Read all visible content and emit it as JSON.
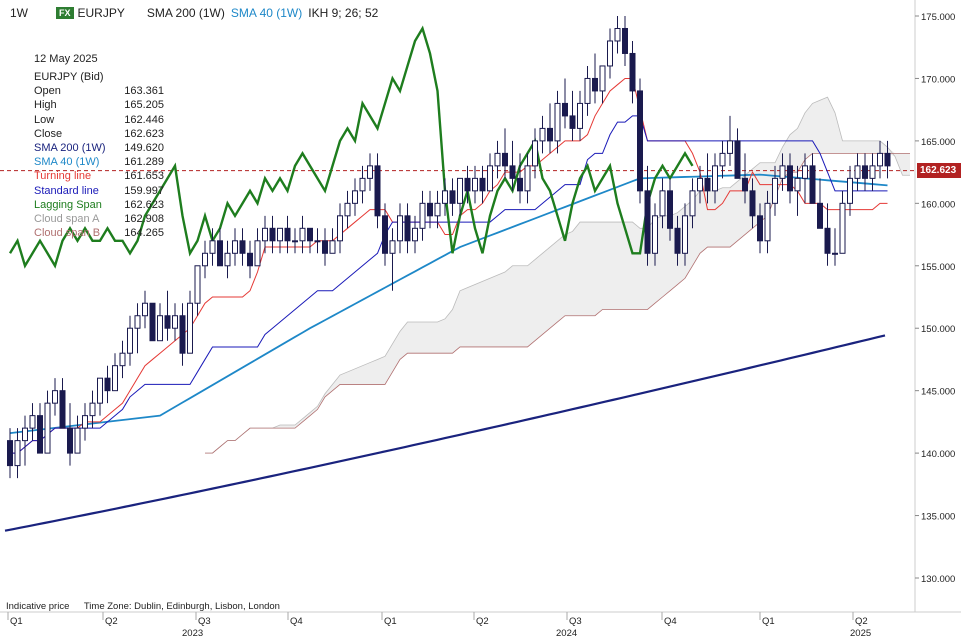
{
  "header": {
    "timeframe": "1W",
    "fx_badge": "FX",
    "symbol": "EURJPY",
    "indicators": [
      "SMA 200 (1W)",
      "SMA 40 (1W)",
      "IKH 9; 26; 52"
    ]
  },
  "legend": {
    "date": "12 May 2025",
    "instrument": "EURJPY (Bid)",
    "rows": [
      {
        "label": "Open",
        "value": "163.361",
        "color": "#222222"
      },
      {
        "label": "High",
        "value": "165.205",
        "color": "#222222"
      },
      {
        "label": "Low",
        "value": "162.446",
        "color": "#222222"
      },
      {
        "label": "Close",
        "value": "162.623",
        "color": "#222222"
      },
      {
        "label": "SMA 200 (1W)",
        "value": "149.620",
        "color": "#1a237e"
      },
      {
        "label": "SMA 40 (1W)",
        "value": "161.289",
        "color": "#1e88c8"
      },
      {
        "label": "Turning line",
        "value": "161.653",
        "color": "#e53935"
      },
      {
        "label": "Standard line",
        "value": "159.997",
        "color": "#1a1ab8"
      },
      {
        "label": "Lagging Span",
        "value": "162.623",
        "color": "#1e7d1e"
      },
      {
        "label": "Cloud span A",
        "value": "162.908",
        "color": "#999999"
      },
      {
        "label": "Cloud span B",
        "value": "164.265",
        "color": "#b07070"
      }
    ]
  },
  "footer": {
    "note": "Indicative price",
    "timezone": "Time Zone: Dublin, Edinburgh, Lisbon, London"
  },
  "price_label": "162.623",
  "chart_data": {
    "type": "candlestick",
    "y_axis": {
      "ticks": [
        "130.000",
        "135.000",
        "140.000",
        "145.000",
        "150.000",
        "155.000",
        "160.000",
        "165.000",
        "170.000",
        "175.000"
      ],
      "side": "right"
    },
    "x_axis": {
      "quarters": [
        "Q1",
        "Q2",
        "Q3",
        "Q4",
        "Q1",
        "Q2",
        "Q3",
        "Q4",
        "Q1",
        "Q2"
      ],
      "years": [
        "2023",
        "2024",
        "2025"
      ]
    },
    "current_price": 162.623,
    "ohlc": [
      [
        141,
        142,
        138,
        139
      ],
      [
        139,
        142,
        138,
        141
      ],
      [
        141,
        143,
        139,
        142
      ],
      [
        142,
        144,
        141,
        143
      ],
      [
        143,
        144,
        140,
        140
      ],
      [
        140,
        145,
        140,
        144
      ],
      [
        144,
        146,
        143,
        145
      ],
      [
        145,
        146,
        142,
        142
      ],
      [
        142,
        144,
        139,
        140
      ],
      [
        140,
        143,
        140,
        142
      ],
      [
        142,
        144,
        141,
        143
      ],
      [
        143,
        145,
        142,
        144
      ],
      [
        144,
        146,
        143,
        146
      ],
      [
        146,
        147,
        144,
        145
      ],
      [
        145,
        148,
        145,
        147
      ],
      [
        147,
        149,
        146,
        148
      ],
      [
        148,
        151,
        147,
        150
      ],
      [
        150,
        152,
        148,
        151
      ],
      [
        151,
        153,
        150,
        152
      ],
      [
        152,
        152,
        149,
        149
      ],
      [
        149,
        152,
        149,
        151
      ],
      [
        151,
        153,
        149,
        150
      ],
      [
        150,
        152,
        149,
        151
      ],
      [
        151,
        152,
        147,
        148
      ],
      [
        148,
        153,
        148,
        152
      ],
      [
        152,
        155,
        151,
        155
      ],
      [
        155,
        157,
        154,
        156
      ],
      [
        156,
        158,
        155,
        157
      ],
      [
        157,
        158,
        155,
        155
      ],
      [
        155,
        157,
        154,
        156
      ],
      [
        156,
        158,
        155,
        157
      ],
      [
        157,
        158,
        155,
        156
      ],
      [
        156,
        157,
        154,
        155
      ],
      [
        155,
        158,
        155,
        157
      ],
      [
        157,
        159,
        156,
        158
      ],
      [
        158,
        159,
        156,
        157
      ],
      [
        157,
        158,
        156,
        158
      ],
      [
        158,
        159,
        156,
        157
      ],
      [
        157,
        158,
        156,
        157
      ],
      [
        157,
        159,
        156,
        158
      ],
      [
        158,
        158,
        156,
        157
      ],
      [
        157,
        158,
        156,
        157
      ],
      [
        157,
        158,
        155,
        156
      ],
      [
        156,
        158,
        156,
        157
      ],
      [
        157,
        160,
        156,
        159
      ],
      [
        159,
        161,
        158,
        160
      ],
      [
        160,
        162,
        159,
        161
      ],
      [
        161,
        163,
        160,
        162
      ],
      [
        162,
        164,
        161,
        163
      ],
      [
        163,
        164,
        158,
        159
      ],
      [
        159,
        160,
        155,
        156
      ],
      [
        156,
        158,
        153,
        157
      ],
      [
        157,
        160,
        156,
        159
      ],
      [
        159,
        160,
        156,
        157
      ],
      [
        157,
        159,
        156,
        158
      ],
      [
        158,
        161,
        157,
        160
      ],
      [
        160,
        161,
        158,
        159
      ],
      [
        159,
        161,
        158,
        160
      ],
      [
        160,
        162,
        159,
        161
      ],
      [
        161,
        162,
        159,
        160
      ],
      [
        160,
        162,
        159,
        162
      ],
      [
        162,
        163,
        160,
        161
      ],
      [
        161,
        163,
        160,
        162
      ],
      [
        162,
        163,
        160,
        161
      ],
      [
        161,
        164,
        161,
        163
      ],
      [
        163,
        165,
        162,
        164
      ],
      [
        164,
        166,
        162,
        163
      ],
      [
        163,
        165,
        161,
        162
      ],
      [
        162,
        164,
        160,
        161
      ],
      [
        161,
        164,
        160,
        163
      ],
      [
        163,
        166,
        162,
        165
      ],
      [
        165,
        167,
        164,
        166
      ],
      [
        166,
        168,
        164,
        165
      ],
      [
        165,
        169,
        164,
        168
      ],
      [
        168,
        170,
        166,
        167
      ],
      [
        167,
        169,
        165,
        166
      ],
      [
        166,
        169,
        165,
        168
      ],
      [
        168,
        171,
        167,
        170
      ],
      [
        170,
        172,
        168,
        169
      ],
      [
        169,
        171,
        168,
        171
      ],
      [
        171,
        174,
        170,
        173
      ],
      [
        173,
        175,
        172,
        174
      ],
      [
        174,
        175,
        171,
        172
      ],
      [
        172,
        173,
        168,
        169
      ],
      [
        169,
        170,
        160,
        161
      ],
      [
        161,
        163,
        155,
        156
      ],
      [
        156,
        160,
        155,
        159
      ],
      [
        159,
        162,
        158,
        161
      ],
      [
        161,
        162,
        157,
        158
      ],
      [
        158,
        159,
        155,
        156
      ],
      [
        156,
        160,
        155,
        159
      ],
      [
        159,
        162,
        158,
        161
      ],
      [
        161,
        163,
        160,
        162
      ],
      [
        162,
        164,
        160,
        161
      ],
      [
        161,
        164,
        160,
        163
      ],
      [
        163,
        165,
        162,
        164
      ],
      [
        164,
        167,
        163,
        165
      ],
      [
        165,
        166,
        162,
        162
      ],
      [
        162,
        164,
        160,
        161
      ],
      [
        161,
        162,
        158,
        159
      ],
      [
        159,
        160,
        156,
        157
      ],
      [
        157,
        161,
        156,
        160
      ],
      [
        160,
        163,
        159,
        162
      ],
      [
        162,
        164,
        161,
        163
      ],
      [
        163,
        164,
        160,
        161
      ],
      [
        161,
        163,
        159,
        162
      ],
      [
        162,
        164,
        160,
        163
      ],
      [
        163,
        164,
        160,
        160
      ],
      [
        160,
        162,
        158,
        158
      ],
      [
        158,
        160,
        155,
        156
      ],
      [
        156,
        158,
        155,
        156
      ],
      [
        156,
        161,
        156,
        160
      ],
      [
        160,
        163,
        159,
        162
      ],
      [
        162,
        164,
        161,
        163
      ],
      [
        163,
        164,
        161,
        162
      ],
      [
        162,
        164,
        161,
        163
      ],
      [
        163,
        165,
        162,
        164
      ],
      [
        164,
        165,
        162,
        163
      ]
    ],
    "sma200": [
      [
        0,
        128.0
      ],
      [
        40,
        133.0
      ],
      [
        80,
        139.0
      ],
      [
        112,
        145.2
      ],
      [
        140,
        148.3
      ],
      [
        166,
        149.62
      ]
    ],
    "sma40": [
      [
        0,
        141.6
      ],
      [
        20,
        143.0
      ],
      [
        40,
        150.0
      ],
      [
        60,
        156.5
      ],
      [
        84,
        162.0
      ],
      [
        100,
        162.3
      ],
      [
        120,
        161.289
      ]
    ]
  }
}
